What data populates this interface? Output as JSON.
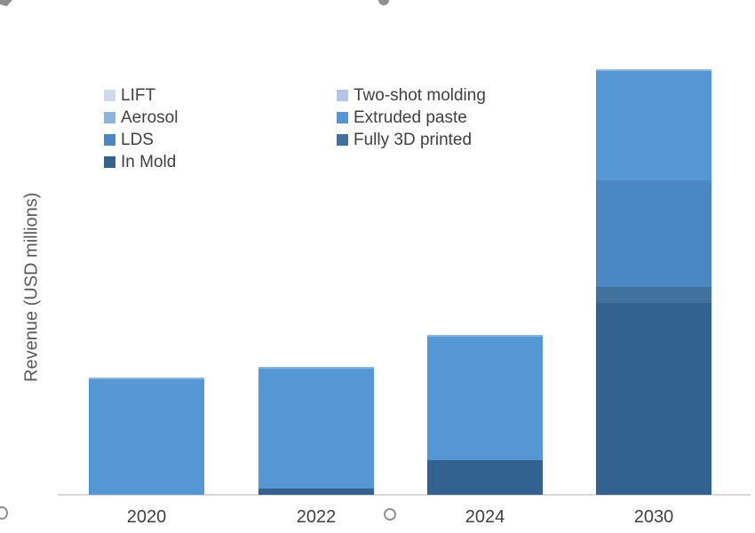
{
  "figure": {
    "y_axis_label": "Revenue (USD millions)"
  },
  "legend": {
    "position": "top-left, two columns",
    "columns": [
      [
        {
          "label": "LIFT",
          "color": "#cfdbed"
        },
        {
          "label": "Aerosol",
          "color": "#8db4dc"
        },
        {
          "label": "LDS",
          "color": "#4a87c3"
        },
        {
          "label": "In Mold",
          "color": "#336190"
        }
      ],
      [
        {
          "label": "Two-shot molding",
          "color": "#b0c7e7"
        },
        {
          "label": "Extruded paste",
          "color": "#5596d4"
        },
        {
          "label": "Fully 3D printed",
          "color": "#41719c"
        }
      ]
    ]
  },
  "chart_data": {
    "type": "bar",
    "stacked": true,
    "title": "",
    "xlabel": "",
    "ylabel": "Revenue (USD millions)",
    "categories": [
      "2020",
      "2022",
      "2024",
      "2030"
    ],
    "stack_order": "first series at bottom",
    "series": [
      {
        "name": "In Mold",
        "color": "#336190",
        "values": [
          0,
          7,
          39,
          216
        ]
      },
      {
        "name": "Fully 3D printed",
        "color": "#41719c",
        "values": [
          0,
          0,
          0,
          18
        ]
      },
      {
        "name": "LDS",
        "color": "#4a87c3",
        "values": [
          0,
          0,
          0,
          120
        ]
      },
      {
        "name": "Extruded paste",
        "color": "#5596d4",
        "values": [
          130,
          135,
          139,
          123
        ]
      },
      {
        "name": "Aerosol",
        "color": "#8db4dc",
        "values": [
          2,
          2,
          2,
          2
        ]
      },
      {
        "name": "Two-shot molding",
        "color": "#b0c7e7",
        "values": [
          0,
          0,
          0,
          0
        ]
      },
      {
        "name": "LIFT",
        "color": "#cfdbed",
        "values": [
          0,
          0,
          0,
          0
        ]
      }
    ],
    "totals": [
      132,
      144,
      180,
      479
    ],
    "grid": false,
    "legend_position": "top-left inside plot",
    "value_note": "Y axis shows no tick labels; values are relative units estimated from bar heights"
  },
  "style_colors": {
    "axis_line": "#d9d9d9",
    "tick_text": "#404040",
    "axis_title_text": "#595959"
  }
}
